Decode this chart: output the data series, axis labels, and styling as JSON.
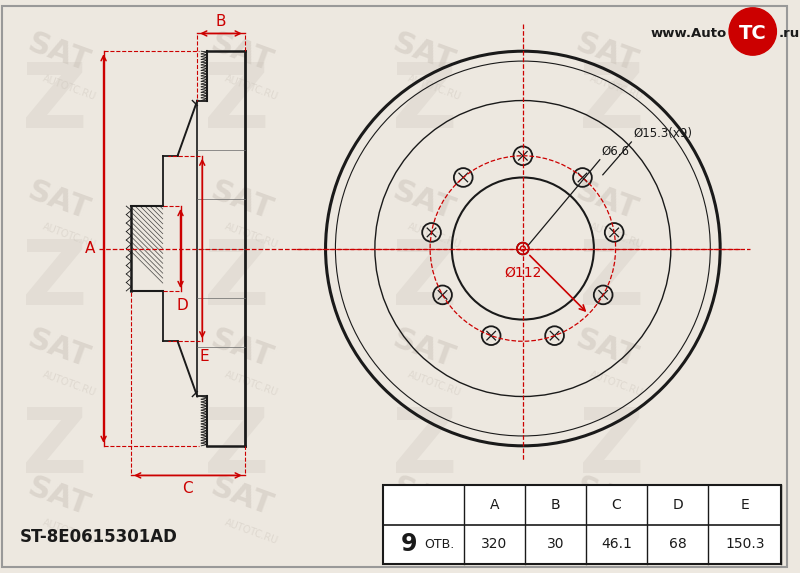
{
  "bg_color": "#ede8e0",
  "line_color": "#1a1a1a",
  "red_color": "#cc0000",
  "part_number": "ST-8E0615301AD",
  "website_pre": "www.Auto",
  "website_post": ".ru",
  "holes_count": "9",
  "otv_label": "ОТВ.",
  "dim_A": "320",
  "dim_B": "30",
  "dim_C": "46.1",
  "dim_D": "68",
  "dim_E": "150.3",
  "diam_small": "Ø6.6",
  "diam_bolt_circle": "Ø15.3(x9)",
  "diam_center": "Ø112",
  "n_bolts": 9,
  "wm_color": "#d5cec5",
  "wm_text": "SAT",
  "wm_subtext": "AUTOTC.RU"
}
